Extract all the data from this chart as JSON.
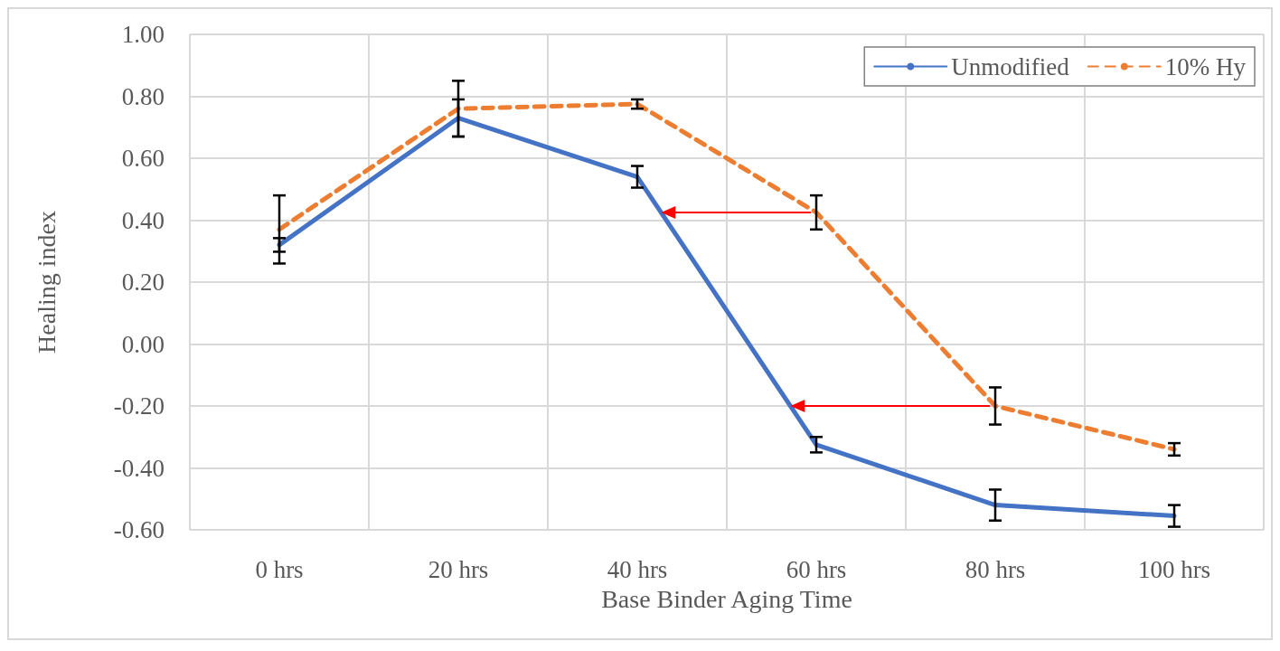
{
  "chart_data": {
    "type": "line",
    "xlabel": "Base Binder Aging Time",
    "ylabel": "Healing index",
    "categories": [
      "0 hrs",
      "20 hrs",
      "40 hrs",
      "60 hrs",
      "80 hrs",
      "100 hrs"
    ],
    "series": [
      {
        "name": "Unmodified",
        "color": "#4472c4",
        "line_style": "solid",
        "values": [
          0.32,
          0.73,
          0.54,
          -0.325,
          -0.52,
          -0.555
        ],
        "errors": [
          0.022,
          0.06,
          0.035,
          0.025,
          0.05,
          0.035
        ]
      },
      {
        "name": "10% Hy",
        "color": "#ed7d31",
        "line_style": "dashed",
        "values": [
          0.37,
          0.76,
          0.775,
          0.425,
          -0.2,
          -0.34
        ],
        "errors": [
          0.11,
          0.09,
          0.015,
          0.055,
          0.06,
          0.02
        ]
      }
    ],
    "ylim": [
      -0.6,
      1.0
    ],
    "yticks": [
      {
        "value": -0.6,
        "label": "-0.60"
      },
      {
        "value": -0.4,
        "label": "-0.40"
      },
      {
        "value": -0.2,
        "label": "-0.20"
      },
      {
        "value": 0,
        "label": "0.00"
      },
      {
        "value": 0.2,
        "label": "0.20"
      },
      {
        "value": 0.4,
        "label": "0.40"
      },
      {
        "value": 0.6,
        "label": "0.60"
      },
      {
        "value": 0.8,
        "label": "0.80"
      },
      {
        "value": 1.0,
        "label": "1.00"
      }
    ],
    "grid": true,
    "legend": "top right",
    "marker": "none"
  }
}
